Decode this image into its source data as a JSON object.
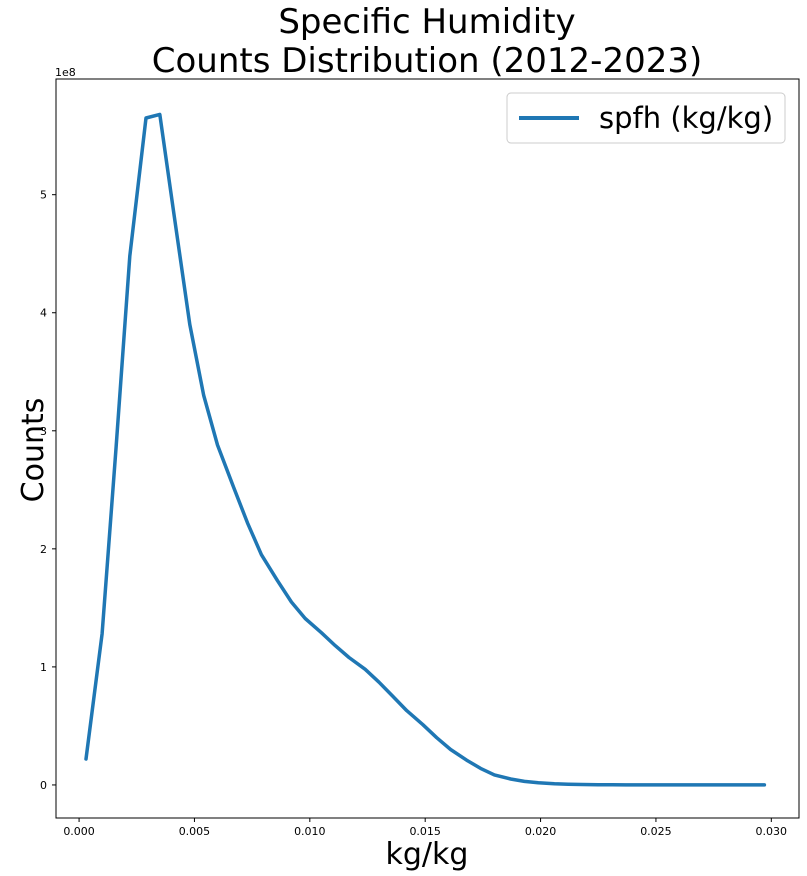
{
  "chart_data": {
    "type": "line",
    "title_lines": [
      "Specific Humidity",
      "Counts Distribution (2012-2023)"
    ],
    "xlabel": "kg/kg",
    "ylabel": "Counts",
    "y_offset_label": "1e8",
    "xlim": [
      -0.001,
      0.0312
    ],
    "ylim": [
      -28000000.0,
      598000000.0
    ],
    "xticks": [
      0.0,
      0.005,
      0.01,
      0.015,
      0.02,
      0.025,
      0.03
    ],
    "xtick_labels": [
      "0.000",
      "0.005",
      "0.010",
      "0.015",
      "0.020",
      "0.025",
      "0.030"
    ],
    "yticks": [
      0,
      100000000.0,
      200000000.0,
      300000000.0,
      400000000.0,
      500000000.0
    ],
    "ytick_labels": [
      "0",
      "1",
      "2",
      "3",
      "4",
      "5"
    ],
    "grid": false,
    "legend_position": "top-right",
    "series": [
      {
        "name": "spfh (kg/kg)",
        "color": "#1f77b4",
        "x": [
          0.0003,
          0.001,
          0.0016,
          0.0022,
          0.0029,
          0.0035,
          0.0041,
          0.0048,
          0.0054,
          0.006,
          0.0067,
          0.0073,
          0.0079,
          0.0086,
          0.0092,
          0.0098,
          0.0105,
          0.0111,
          0.0117,
          0.0124,
          0.013,
          0.0136,
          0.0142,
          0.0149,
          0.0155,
          0.0161,
          0.0168,
          0.0174,
          0.018,
          0.0187,
          0.0193,
          0.0199,
          0.0206,
          0.0212,
          0.0218,
          0.0225,
          0.0231,
          0.0237,
          0.0244,
          0.025,
          0.0256,
          0.0263,
          0.0269,
          0.0275,
          0.0282,
          0.0288,
          0.0294,
          0.0297
        ],
        "y": [
          22000000.0,
          128000000.0,
          285000000.0,
          448000000.0,
          565000000.0,
          568000000.0,
          485000000.0,
          390000000.0,
          330000000.0,
          288000000.0,
          252000000.0,
          222000000.0,
          195000000.0,
          173000000.0,
          155000000.0,
          141000000.0,
          129000000.0,
          118000000.0,
          108000000.0,
          98000000.0,
          87000000.0,
          75000000.0,
          63000000.0,
          51000000.0,
          40000000.0,
          30000000.0,
          21000000.0,
          14000000.0,
          8500000.0,
          5000000.0,
          3000000.0,
          1800000.0,
          1000000.0,
          600000.0,
          400000.0,
          200000.0,
          100000.0,
          50000.0,
          0,
          0,
          0,
          0,
          0,
          0,
          0,
          0,
          0,
          0
        ]
      }
    ]
  }
}
